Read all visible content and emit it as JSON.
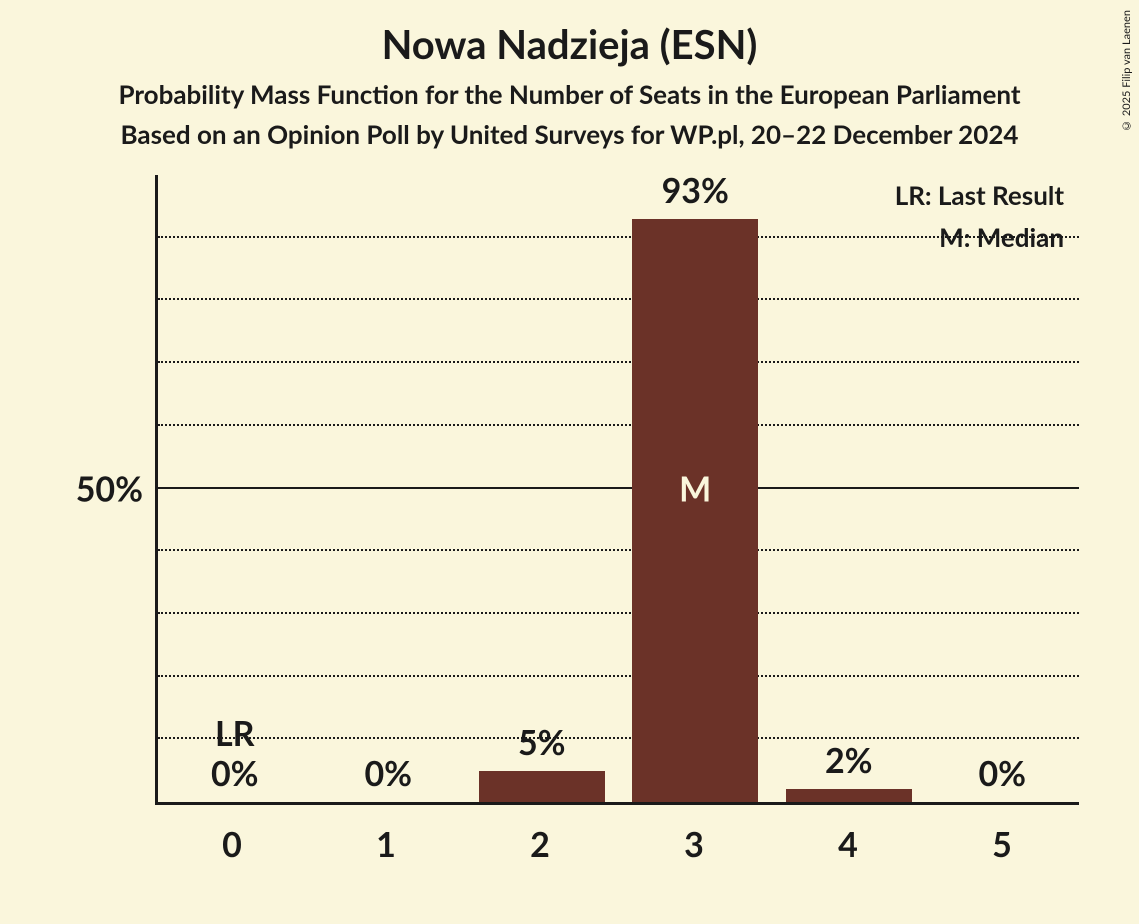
{
  "title": "Nowa Nadzieja (ESN)",
  "subtitle1": "Probability Mass Function for the Number of Seats in the European Parliament",
  "subtitle2": "Based on an Opinion Poll by United Surveys for WP.pl, 20–22 December 2024",
  "copyright": "© 2025 Filip van Laenen",
  "legend": {
    "lr": "LR: Last Result",
    "m": "M: Median"
  },
  "chart": {
    "type": "bar",
    "background_color": "#faf6dc",
    "bar_color": "#6b3228",
    "text_color": "#1a1a1a",
    "inner_text_color": "#faf6dc",
    "axis_color": "#1a1a1a",
    "grid_dotted_color": "#1a1a1a",
    "y_axis": {
      "label": "50%",
      "label_at": 50,
      "max": 100,
      "gridlines": [
        10,
        20,
        30,
        40,
        50,
        60,
        70,
        80,
        90
      ],
      "solid_gridlines": [
        50
      ]
    },
    "categories": [
      "0",
      "1",
      "2",
      "3",
      "4",
      "5"
    ],
    "values": [
      0,
      0,
      5,
      93,
      2,
      0
    ],
    "value_labels": [
      "0%",
      "0%",
      "5%",
      "93%",
      "2%",
      "0%"
    ],
    "annotations": {
      "lr_index": 0,
      "lr_label": "LR",
      "median_index": 3,
      "median_label": "M"
    },
    "title_fontsize": 40,
    "subtitle_fontsize": 26,
    "axis_label_fontsize": 34,
    "value_label_fontsize": 34,
    "legend_fontsize": 26,
    "bar_width_pct": 82
  }
}
